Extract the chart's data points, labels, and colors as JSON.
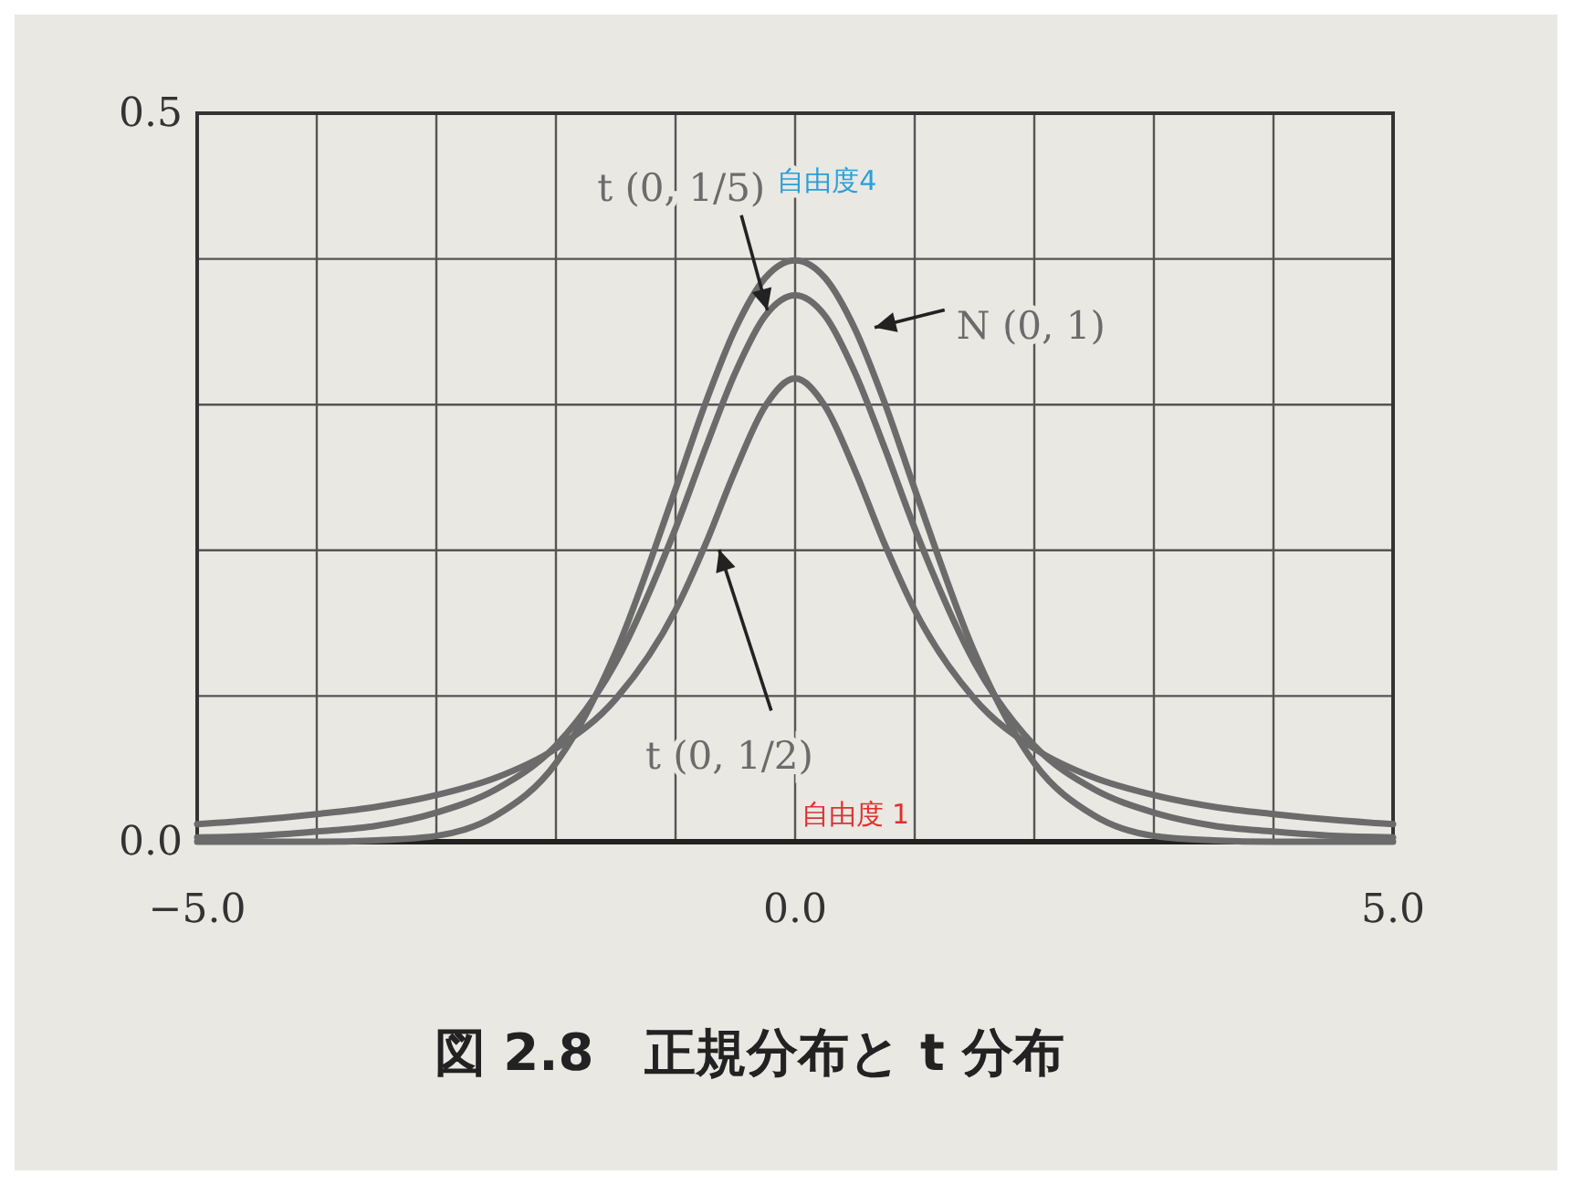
{
  "chart_data": {
    "type": "line",
    "title": "図 2.8　正規分布と t 分布",
    "x": [
      -5,
      -4.5,
      -4,
      -3.5,
      -3,
      -2.5,
      -2,
      -1.5,
      -1,
      -0.75,
      -0.5,
      -0.25,
      0,
      0.25,
      0.5,
      0.75,
      1,
      1.5,
      2,
      2.5,
      3,
      3.5,
      4,
      4.5,
      5
    ],
    "series": [
      {
        "name": "N (0, 1)",
        "color": "#6b6b6b",
        "values": [
          0,
          0,
          0,
          0.001,
          0.004,
          0.018,
          0.054,
          0.13,
          0.242,
          0.301,
          0.352,
          0.387,
          0.399,
          0.387,
          0.352,
          0.301,
          0.242,
          0.13,
          0.054,
          0.018,
          0.004,
          0.001,
          0,
          0,
          0
        ]
      },
      {
        "name": "t (0, 1/5)",
        "color": "#6b6b6b",
        "values": [
          0.003,
          0.004,
          0.007,
          0.011,
          0.02,
          0.036,
          0.066,
          0.123,
          0.215,
          0.27,
          0.322,
          0.361,
          0.375,
          0.361,
          0.322,
          0.27,
          0.215,
          0.123,
          0.066,
          0.036,
          0.02,
          0.011,
          0.007,
          0.004,
          0.003
        ]
      },
      {
        "name": "t (0, 1/2)",
        "color": "#6b6b6b",
        "values": [
          0.012,
          0.015,
          0.019,
          0.024,
          0.032,
          0.044,
          0.064,
          0.098,
          0.159,
          0.204,
          0.255,
          0.299,
          0.318,
          0.299,
          0.255,
          0.204,
          0.159,
          0.098,
          0.064,
          0.044,
          0.032,
          0.024,
          0.019,
          0.015,
          0.012
        ]
      }
    ],
    "xlim": [
      -5,
      5
    ],
    "xticks": [
      {
        "value": -5,
        "label": "−5.0"
      },
      {
        "value": -4,
        "label": null
      },
      {
        "value": -3,
        "label": null
      },
      {
        "value": -2,
        "label": null
      },
      {
        "value": -1,
        "label": null
      },
      {
        "value": 0,
        "label": "0.0"
      },
      {
        "value": 1,
        "label": null
      },
      {
        "value": 2,
        "label": null
      },
      {
        "value": 3,
        "label": null
      },
      {
        "value": 4,
        "label": null
      },
      {
        "value": 5,
        "label": "5.0"
      }
    ],
    "ylim": [
      0,
      0.5
    ],
    "yticks": [
      {
        "value": 0,
        "label": "0.0"
      },
      {
        "value": 0.1,
        "label": null
      },
      {
        "value": 0.2,
        "label": null
      },
      {
        "value": 0.3,
        "label": null
      },
      {
        "value": 0.4,
        "label": null
      },
      {
        "value": 0.5,
        "label": "0.5"
      }
    ],
    "grid": true,
    "marker": "none",
    "line_style": "solid",
    "annotations": [
      "自由度4",
      "自由度 1"
    ]
  }
}
